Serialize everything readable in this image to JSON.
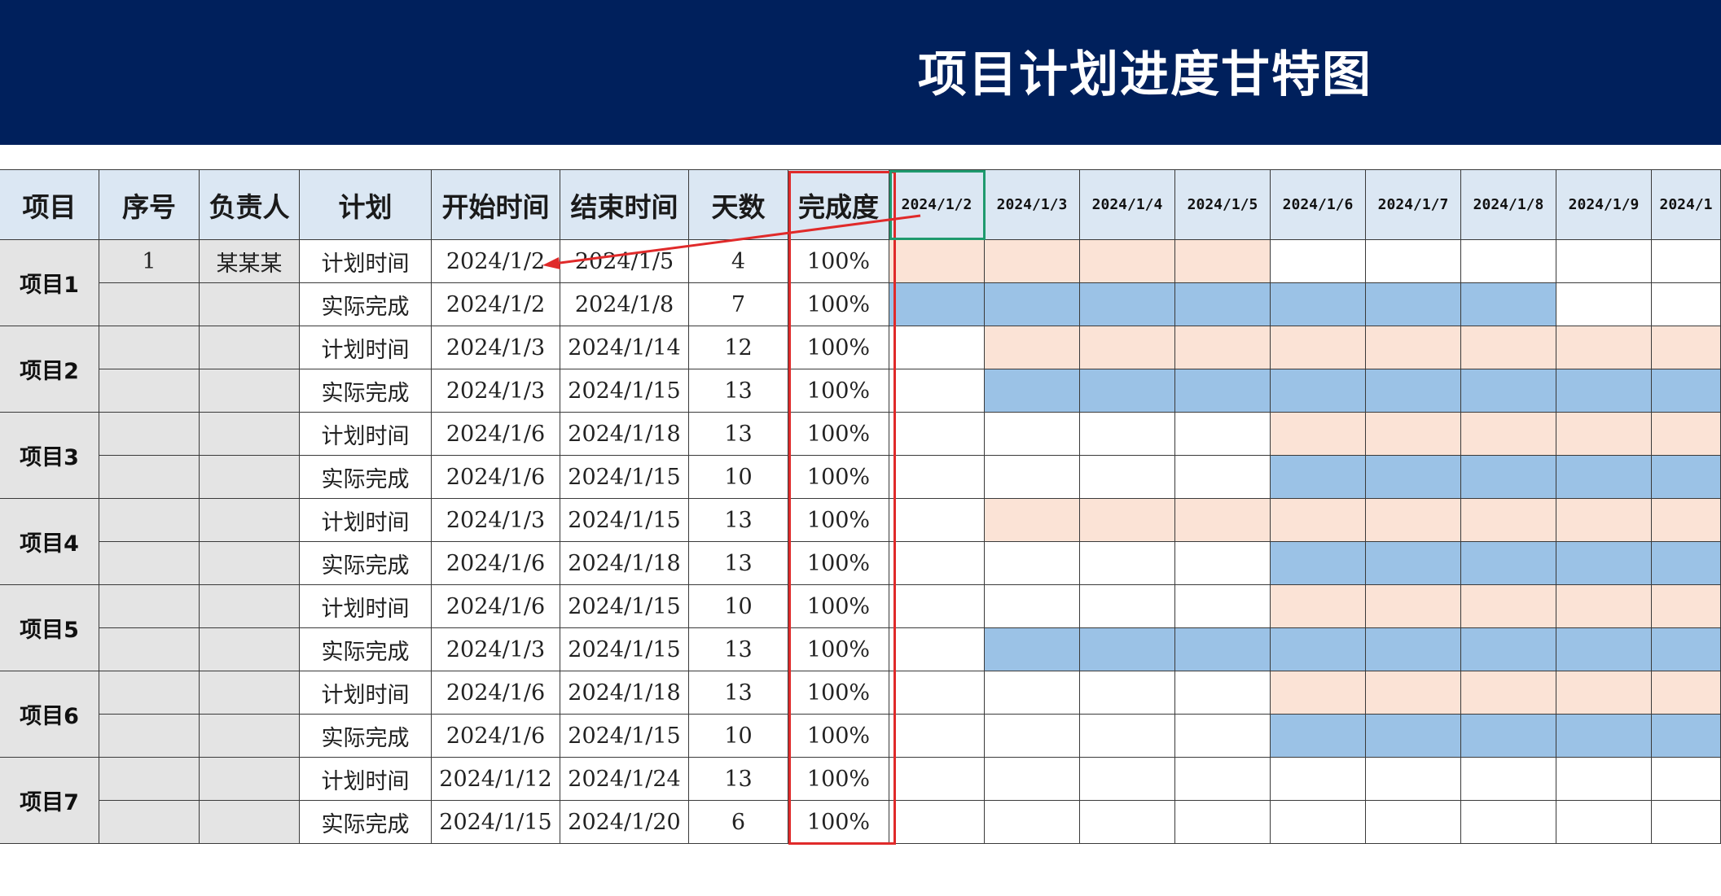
{
  "title": "项目计划进度甘特图",
  "colors": {
    "banner": "#00205c",
    "header_bg": "#dbe7f3",
    "gray_bg": "#e4e4e4",
    "plan_bar": "#fbe3d6",
    "actual_bar": "#9bc2e6",
    "highlight": "#e02a2a",
    "selection": "#1f9a6e"
  },
  "table": {
    "headers": [
      "项目",
      "序号",
      "负责人",
      "计划",
      "开始时间",
      "结束时间",
      "天数",
      "完成度"
    ],
    "dates": [
      "2024/1/2",
      "2024/1/3",
      "2024/1/4",
      "2024/1/5",
      "2024/1/6",
      "2024/1/7",
      "2024/1/8",
      "2024/1/9",
      "2024/1"
    ],
    "projects": [
      {
        "name": "项目1",
        "seq": "1",
        "owner": "某某某",
        "rows": [
          {
            "type": "计划时间",
            "start": "2024/1/2",
            "end": "2024/1/5",
            "days": "4",
            "pct": "100%"
          },
          {
            "type": "实际完成",
            "start": "2024/1/2",
            "end": "2024/1/8",
            "days": "7",
            "pct": "100%"
          }
        ]
      },
      {
        "name": "项目2",
        "seq": "",
        "owner": "",
        "rows": [
          {
            "type": "计划时间",
            "start": "2024/1/3",
            "end": "2024/1/14",
            "days": "12",
            "pct": "100%"
          },
          {
            "type": "实际完成",
            "start": "2024/1/3",
            "end": "2024/1/15",
            "days": "13",
            "pct": "100%"
          }
        ]
      },
      {
        "name": "项目3",
        "seq": "",
        "owner": "",
        "rows": [
          {
            "type": "计划时间",
            "start": "2024/1/6",
            "end": "2024/1/18",
            "days": "13",
            "pct": "100%"
          },
          {
            "type": "实际完成",
            "start": "2024/1/6",
            "end": "2024/1/15",
            "days": "10",
            "pct": "100%"
          }
        ]
      },
      {
        "name": "项目4",
        "seq": "",
        "owner": "",
        "rows": [
          {
            "type": "计划时间",
            "start": "2024/1/3",
            "end": "2024/1/15",
            "days": "13",
            "pct": "100%"
          },
          {
            "type": "实际完成",
            "start": "2024/1/6",
            "end": "2024/1/18",
            "days": "13",
            "pct": "100%"
          }
        ]
      },
      {
        "name": "项目5",
        "seq": "",
        "owner": "",
        "rows": [
          {
            "type": "计划时间",
            "start": "2024/1/6",
            "end": "2024/1/15",
            "days": "10",
            "pct": "100%"
          },
          {
            "type": "实际完成",
            "start": "2024/1/3",
            "end": "2024/1/15",
            "days": "13",
            "pct": "100%"
          }
        ]
      },
      {
        "name": "项目6",
        "seq": "",
        "owner": "",
        "rows": [
          {
            "type": "计划时间",
            "start": "2024/1/6",
            "end": "2024/1/18",
            "days": "13",
            "pct": "100%"
          },
          {
            "type": "实际完成",
            "start": "2024/1/6",
            "end": "2024/1/15",
            "days": "10",
            "pct": "100%"
          }
        ]
      },
      {
        "name": "项目7",
        "seq": "",
        "owner": "",
        "rows": [
          {
            "type": "计划时间",
            "start": "2024/1/12",
            "end": "2024/1/24",
            "days": "13",
            "pct": "100%"
          },
          {
            "type": "实际完成",
            "start": "2024/1/15",
            "end": "2024/1/20",
            "days": "6",
            "pct": "100%"
          }
        ]
      }
    ]
  }
}
